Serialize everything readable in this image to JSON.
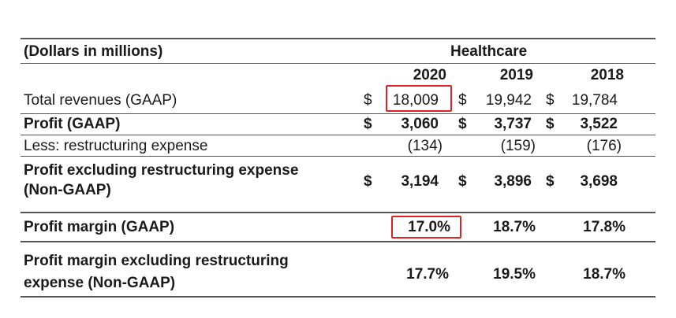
{
  "header": {
    "units_label": "(Dollars in millions)",
    "segment": "Healthcare",
    "years": [
      "2020",
      "2019",
      "2018"
    ]
  },
  "rows": {
    "total_revenues": {
      "label": "Total revenues (GAAP)",
      "currency": "$",
      "values": [
        "18,009",
        "19,942",
        "19,784"
      ]
    },
    "profit": {
      "label": "Profit (GAAP)",
      "currency": "$",
      "values": [
        "3,060",
        "3,737",
        "3,522"
      ]
    },
    "restructuring": {
      "label": "Less: restructuring expense",
      "values": [
        "(134)",
        "(159)",
        "(176)"
      ]
    },
    "profit_excl": {
      "label_line1": "Profit excluding restructuring expense",
      "label_line2": "(Non-GAAP)",
      "currency": "$",
      "values": [
        "3,194",
        "3,896",
        "3,698"
      ]
    },
    "margin": {
      "label": "Profit margin (GAAP)",
      "values": [
        "17.0%",
        "18.7%",
        "17.8%"
      ]
    },
    "margin_excl": {
      "label_line1": "Profit margin excluding restructuring",
      "label_line2": "expense (Non-GAAP)",
      "values": [
        "17.7%",
        "19.5%",
        "18.7%"
      ]
    }
  },
  "colors": {
    "highlight": "#e02020",
    "rule": "#555555"
  }
}
